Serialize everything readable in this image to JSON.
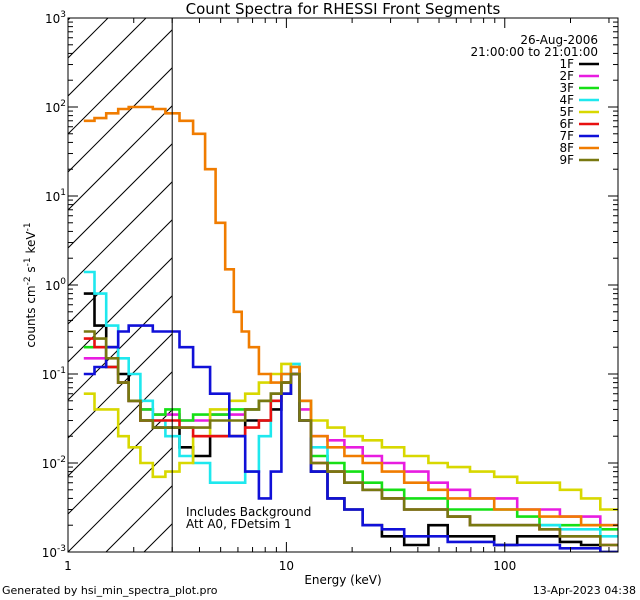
{
  "chart_data": {
    "type": "line",
    "title": "Count Spectra for RHESSI Front Segments",
    "xlabel": "Energy (keV)",
    "ylabel": "counts cm-2 s-1 keV-1",
    "xscale": "log",
    "yscale": "log",
    "xlim": [
      1,
      330
    ],
    "ylim": [
      0.001,
      1000
    ],
    "x_tick_labels": [
      "1",
      "10",
      "100"
    ],
    "y_tick_labels": [
      {
        "base": "10",
        "exp": "-3"
      },
      {
        "base": "10",
        "exp": "-2"
      },
      {
        "base": "10",
        "exp": "-1"
      },
      {
        "base": "10",
        "exp": "0"
      },
      {
        "base": "10",
        "exp": "1"
      },
      {
        "base": "10",
        "exp": "2"
      },
      {
        "base": "10",
        "exp": "3"
      }
    ],
    "date": "26-Aug-2006",
    "time_range": "21:00:00 to 21:01:00",
    "hatched_region_keV": [
      1,
      3
    ],
    "annotation_lines": [
      "Includes Background",
      "Att A0, FDetsim 1"
    ],
    "footer_left": "Generated by hsi_min_spectra_plot.pro",
    "footer_right": "13-Apr-2023 04:38",
    "series": [
      {
        "name": "1F",
        "color": "#000000",
        "x": [
          1.25,
          1.4,
          1.6,
          1.8,
          2.0,
          2.3,
          2.6,
          3.0,
          3.5,
          4,
          5,
          6,
          7,
          8,
          9,
          10,
          11,
          12,
          14,
          17,
          20,
          25,
          30,
          40,
          50,
          60,
          80,
          100,
          130,
          160,
          200,
          250,
          300
        ],
        "values": [
          0.8,
          0.35,
          0.2,
          0.1,
          0.05,
          0.03,
          0.025,
          0.025,
          0.015,
          0.012,
          0.02,
          0.02,
          0.03,
          0.03,
          0.04,
          0.06,
          0.1,
          0.03,
          0.008,
          0.004,
          0.003,
          0.002,
          0.0015,
          0.0012,
          0.002,
          0.0015,
          0.0015,
          0.0012,
          0.0015,
          0.0015,
          0.0013,
          0.0012,
          0.001
        ]
      },
      {
        "name": "2F",
        "color": "#e81ce0",
        "x": [
          1.25,
          1.4,
          1.6,
          1.8,
          2.0,
          2.3,
          2.6,
          3.0,
          3.5,
          4,
          5,
          6,
          7,
          8,
          9,
          10,
          11,
          12,
          14,
          17,
          20,
          25,
          30,
          40,
          50,
          60,
          80,
          100,
          130,
          160,
          200,
          250,
          300
        ],
        "values": [
          0.15,
          0.15,
          0.12,
          0.08,
          0.05,
          0.04,
          0.035,
          0.035,
          0.03,
          0.03,
          0.035,
          0.035,
          0.04,
          0.05,
          0.06,
          0.08,
          0.1,
          0.04,
          0.02,
          0.018,
          0.015,
          0.012,
          0.01,
          0.008,
          0.006,
          0.005,
          0.004,
          0.004,
          0.003,
          0.003,
          0.0025,
          0.0025,
          0.002
        ]
      },
      {
        "name": "3F",
        "color": "#16e016",
        "x": [
          1.25,
          1.4,
          1.6,
          1.8,
          2.0,
          2.3,
          2.6,
          3.0,
          3.5,
          4,
          5,
          6,
          7,
          8,
          9,
          10,
          11,
          12,
          14,
          17,
          20,
          25,
          30,
          40,
          50,
          60,
          80,
          100,
          130,
          160,
          200,
          250,
          300
        ],
        "values": [
          0.2,
          0.2,
          0.12,
          0.08,
          0.05,
          0.04,
          0.035,
          0.04,
          0.03,
          0.035,
          0.035,
          0.04,
          0.04,
          0.05,
          0.06,
          0.08,
          0.1,
          0.03,
          0.012,
          0.01,
          0.008,
          0.006,
          0.005,
          0.004,
          0.004,
          0.003,
          0.003,
          0.003,
          0.0025,
          0.002,
          0.002,
          0.002,
          0.0018
        ]
      },
      {
        "name": "4F",
        "color": "#1ee8ee",
        "x": [
          1.25,
          1.4,
          1.6,
          1.8,
          2.0,
          2.3,
          2.6,
          3.0,
          3.5,
          4,
          5,
          6,
          7,
          8,
          9,
          10,
          11,
          12,
          14,
          17,
          20,
          25,
          30,
          40,
          50,
          60,
          80,
          100,
          130,
          160,
          200,
          250,
          300
        ],
        "values": [
          1.4,
          0.8,
          0.35,
          0.15,
          0.1,
          0.05,
          0.03,
          0.02,
          0.012,
          0.01,
          0.006,
          0.006,
          0.008,
          0.02,
          0.05,
          0.1,
          0.13,
          0.05,
          0.015,
          0.008,
          0.006,
          0.005,
          0.004,
          0.003,
          0.003,
          0.0025,
          0.002,
          0.002,
          0.002,
          0.002,
          0.0018,
          0.0018,
          0.0015
        ]
      },
      {
        "name": "5F",
        "color": "#d8d800",
        "x": [
          1.25,
          1.4,
          1.6,
          1.8,
          2.0,
          2.3,
          2.6,
          3.0,
          3.5,
          4,
          5,
          6,
          7,
          8,
          9,
          10,
          11,
          12,
          14,
          17,
          20,
          25,
          30,
          40,
          50,
          60,
          80,
          100,
          130,
          160,
          200,
          250,
          300
        ],
        "values": [
          0.06,
          0.04,
          0.04,
          0.02,
          0.015,
          0.01,
          0.007,
          0.008,
          0.01,
          0.02,
          0.04,
          0.05,
          0.06,
          0.08,
          0.1,
          0.13,
          0.12,
          0.05,
          0.03,
          0.025,
          0.02,
          0.018,
          0.015,
          0.012,
          0.01,
          0.009,
          0.008,
          0.007,
          0.006,
          0.006,
          0.005,
          0.004,
          0.003
        ]
      },
      {
        "name": "6F",
        "color": "#e81010",
        "x": [
          1.25,
          1.4,
          1.6,
          1.8,
          2.0,
          2.3,
          2.6,
          3.0,
          3.5,
          4,
          5,
          6,
          7,
          8,
          9,
          10,
          11,
          12,
          14,
          17,
          20,
          25,
          30,
          40,
          50,
          60,
          80,
          100,
          130,
          160,
          200,
          250,
          300
        ],
        "values": [
          0.25,
          0.2,
          0.12,
          0.08,
          0.05,
          0.03,
          0.03,
          0.03,
          0.025,
          0.02,
          0.02,
          0.02,
          0.025,
          0.03,
          0.05,
          0.08,
          0.1,
          0.03,
          0.01,
          0.008,
          0.006,
          0.005,
          0.004,
          0.003,
          0.003,
          0.0025,
          0.002,
          0.002,
          0.002,
          0.0018,
          0.0015,
          0.0015,
          0.0012
        ]
      },
      {
        "name": "7F",
        "color": "#1010d8",
        "x": [
          1.25,
          1.4,
          1.6,
          1.8,
          2.0,
          2.3,
          2.6,
          3.0,
          3.5,
          4,
          5,
          6,
          7,
          8,
          9,
          10,
          11,
          12,
          14,
          17,
          20,
          25,
          30,
          40,
          50,
          60,
          80,
          100,
          130,
          160,
          200,
          250,
          300
        ],
        "values": [
          0.1,
          0.12,
          0.2,
          0.3,
          0.35,
          0.35,
          0.3,
          0.3,
          0.2,
          0.12,
          0.06,
          0.02,
          0.008,
          0.004,
          0.008,
          0.06,
          0.1,
          0.03,
          0.008,
          0.004,
          0.003,
          0.002,
          0.0018,
          0.0015,
          0.0015,
          0.0013,
          0.0013,
          0.0012,
          0.0012,
          0.0012,
          0.0011,
          0.0011,
          0.001
        ]
      },
      {
        "name": "8F",
        "color": "#f07c00",
        "x": [
          1.25,
          1.4,
          1.6,
          1.8,
          2.0,
          2.3,
          2.6,
          3.0,
          3.5,
          4,
          4.5,
          5,
          5.5,
          6,
          6.5,
          7,
          8,
          9,
          10,
          11,
          12,
          14,
          17,
          20,
          25,
          30,
          40,
          50,
          60,
          80,
          100,
          130,
          160,
          200,
          250,
          300
        ],
        "values": [
          70,
          75,
          85,
          95,
          100,
          100,
          95,
          85,
          70,
          50,
          20,
          5,
          1.5,
          0.5,
          0.3,
          0.2,
          0.1,
          0.08,
          0.1,
          0.12,
          0.05,
          0.02,
          0.015,
          0.012,
          0.01,
          0.008,
          0.006,
          0.005,
          0.004,
          0.004,
          0.003,
          0.003,
          0.0025,
          0.0025,
          0.002,
          0.002
        ]
      },
      {
        "name": "9F",
        "color": "#787810",
        "x": [
          1.25,
          1.4,
          1.6,
          1.8,
          2.0,
          2.3,
          2.6,
          3.0,
          3.5,
          4,
          5,
          6,
          7,
          8,
          9,
          10,
          11,
          12,
          14,
          17,
          20,
          25,
          30,
          40,
          50,
          60,
          80,
          100,
          130,
          160,
          200,
          250,
          300
        ],
        "values": [
          0.3,
          0.25,
          0.15,
          0.08,
          0.05,
          0.03,
          0.025,
          0.025,
          0.025,
          0.025,
          0.03,
          0.03,
          0.04,
          0.05,
          0.06,
          0.08,
          0.1,
          0.03,
          0.01,
          0.008,
          0.006,
          0.005,
          0.004,
          0.003,
          0.003,
          0.0025,
          0.002,
          0.002,
          0.002,
          0.0018,
          0.0015,
          0.0015,
          0.0012
        ]
      }
    ]
  }
}
